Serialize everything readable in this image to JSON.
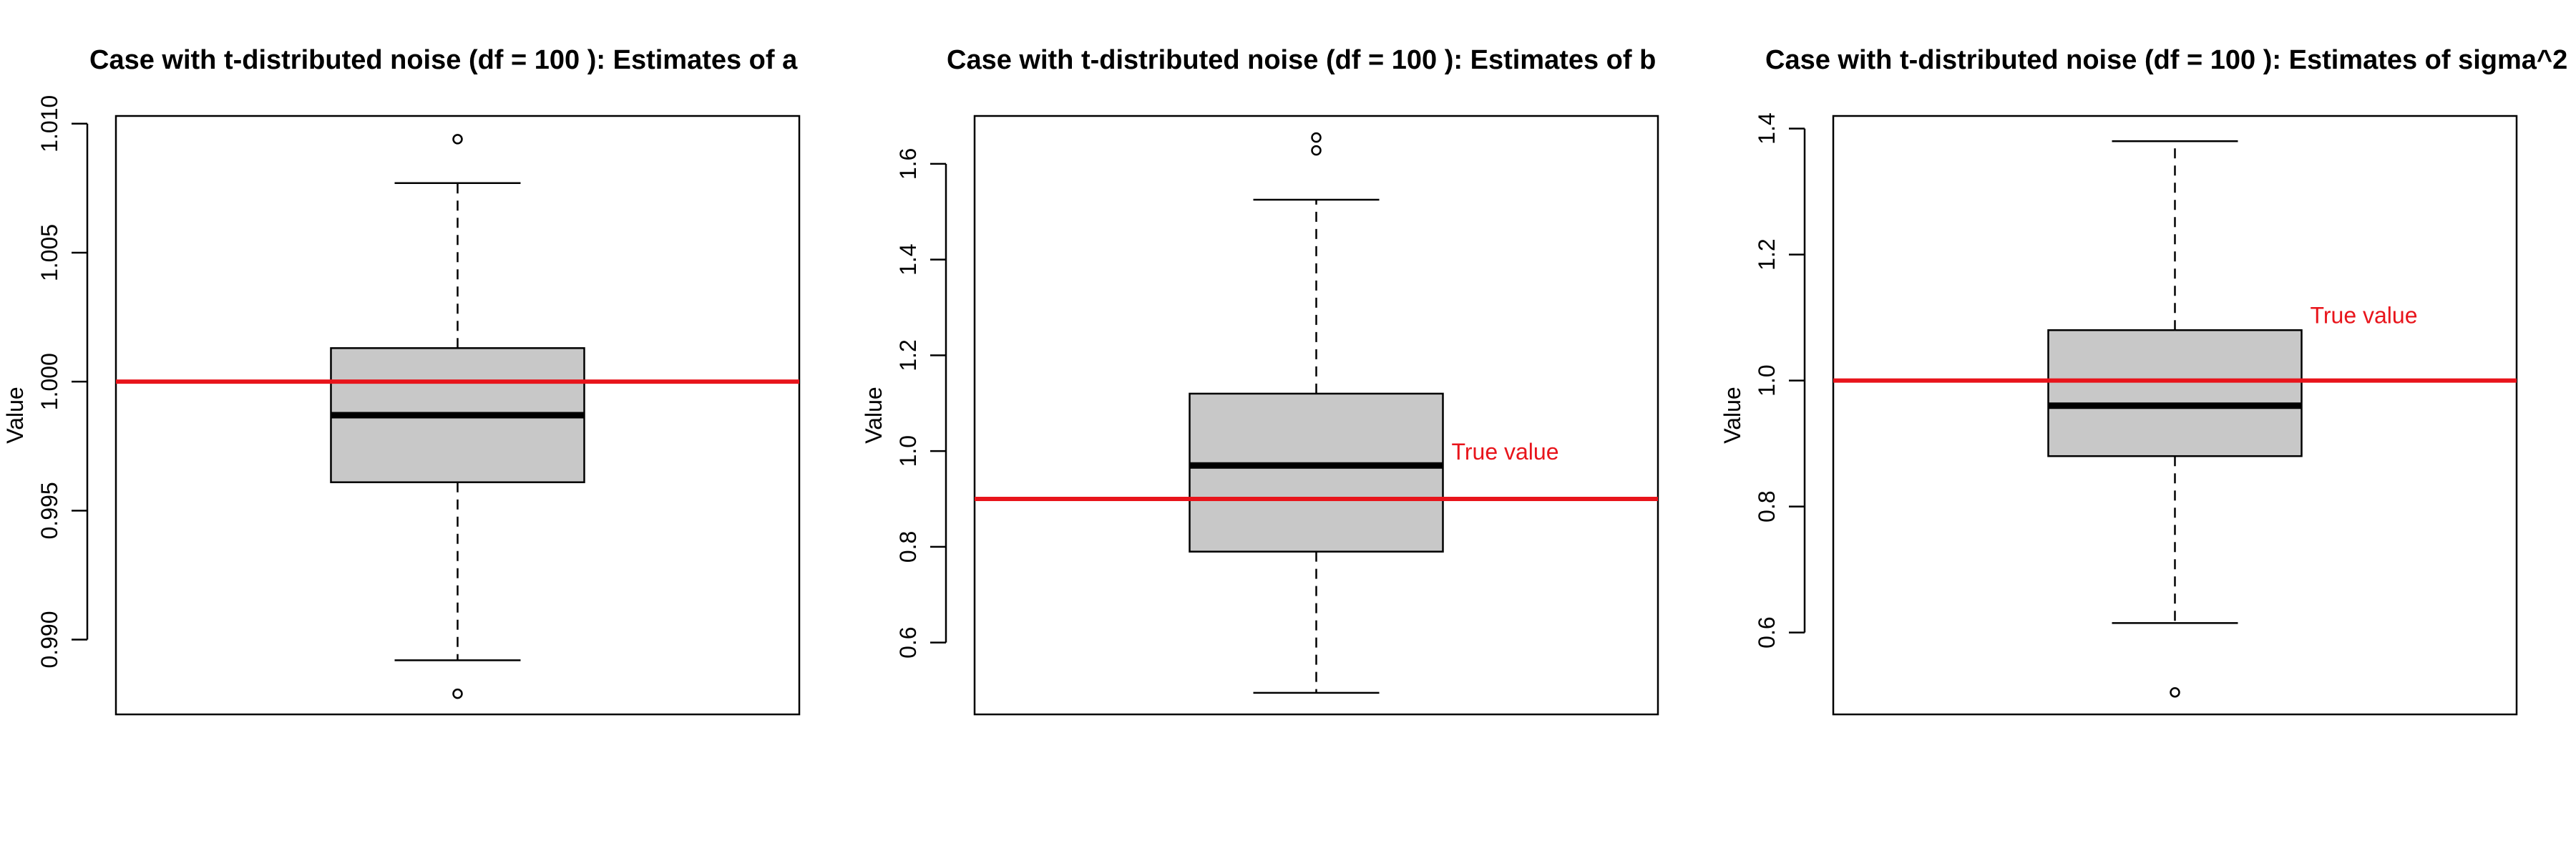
{
  "chart_data": [
    {
      "type": "boxplot",
      "title": "Case with t-distributed noise (df = 100 ): Estimates of a",
      "xlabel": "",
      "ylabel": "Value",
      "ylim": [
        0.9871,
        1.0103
      ],
      "yticks": [
        "0.990",
        "0.995",
        "1.000",
        "1.005",
        "1.010"
      ],
      "box": {
        "whisker_low": 0.9892,
        "q1": 0.9961,
        "median": 0.9987,
        "q3": 1.0013,
        "whisker_high": 1.0077
      },
      "outliers": [
        1.0094,
        0.9879
      ],
      "reference": {
        "value": 1.0,
        "label": "",
        "color": "#e8141b"
      },
      "box_fill": "#c8c8c8"
    },
    {
      "type": "boxplot",
      "title": "Case with t-distributed noise (df = 100 ): Estimates of b",
      "xlabel": "",
      "ylabel": "Value",
      "ylim": [
        0.45,
        1.7
      ],
      "yticks": [
        "0.6",
        "0.8",
        "1.0",
        "1.2",
        "1.4",
        "1.6"
      ],
      "box": {
        "whisker_low": 0.495,
        "q1": 0.79,
        "median": 0.97,
        "q3": 1.12,
        "whisker_high": 1.525
      },
      "outliers": [
        1.655,
        1.628
      ],
      "reference": {
        "value": 0.9,
        "label": "True value",
        "color": "#e8141b"
      },
      "box_fill": "#c8c8c8"
    },
    {
      "type": "boxplot",
      "title": "Case with t-distributed noise (df = 100 ): Estimates of sigma^2",
      "xlabel": "",
      "ylabel": "Value",
      "ylim": [
        0.47,
        1.42
      ],
      "yticks": [
        "0.6",
        "0.8",
        "1.0",
        "1.2",
        "1.4"
      ],
      "box": {
        "whisker_low": 0.615,
        "q1": 0.88,
        "median": 0.96,
        "q3": 1.08,
        "whisker_high": 1.38
      },
      "outliers": [
        0.505
      ],
      "reference": {
        "value": 1.0,
        "label": "True value",
        "color": "#e8141b"
      },
      "box_fill": "#c8c8c8"
    }
  ]
}
